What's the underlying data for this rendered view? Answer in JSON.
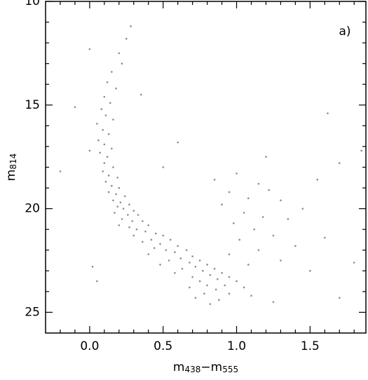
{
  "chart_data": {
    "type": "scatter",
    "annotation": "a)",
    "xlabel": [
      "m",
      "438",
      "−m",
      "555"
    ],
    "ylabel": [
      "m",
      "814"
    ],
    "color": "#8c8c8c",
    "xlim": [
      -0.3,
      1.88
    ],
    "ylim": [
      10,
      26
    ],
    "y_inverted": true,
    "xticks": [
      {
        "value": 0,
        "label": "0.0"
      },
      0.5,
      {
        "value": 1,
        "label": "1.0"
      },
      1.5
    ],
    "xminor": [
      -0.2,
      -0.1,
      0.1,
      0.2,
      0.3,
      0.4,
      0.6,
      0.7,
      0.8,
      0.9,
      1.1,
      1.2,
      1.3,
      1.4,
      1.6,
      1.7,
      1.8
    ],
    "yticks": [
      10,
      15,
      20,
      25
    ],
    "yminor": [
      11,
      12,
      13,
      14,
      16,
      17,
      18,
      19,
      21,
      22,
      23,
      24
    ],
    "x": [
      0.28,
      0.25,
      0.2,
      0.22,
      0.15,
      0.12,
      0.18,
      0.1,
      0.14,
      0.08,
      0.11,
      0.16,
      0.05,
      0.09,
      0.13,
      0.06,
      0.1,
      0.15,
      0.07,
      0.12,
      0.1,
      0.16,
      0.09,
      0.13,
      0.19,
      0.11,
      0.15,
      0.2,
      0.13,
      0.18,
      0.24,
      0.16,
      0.21,
      0.27,
      0.19,
      0.23,
      0.3,
      0.17,
      0.26,
      0.33,
      0.22,
      0.29,
      0.36,
      0.2,
      0.27,
      0.4,
      0.32,
      0.38,
      0.45,
      0.3,
      0.5,
      0.42,
      0.36,
      0.55,
      0.48,
      0.6,
      0.44,
      0.52,
      0.66,
      0.58,
      0.4,
      0.7,
      0.62,
      0.54,
      0.75,
      0.68,
      0.48,
      0.8,
      0.72,
      0.63,
      0.85,
      0.77,
      0.58,
      0.9,
      0.82,
      0.7,
      0.95,
      0.87,
      0.75,
      1.0,
      0.8,
      0.92,
      0.68,
      0.86,
      1.05,
      0.78,
      0.95,
      0.72,
      0.88,
      1.1,
      0.82,
      1.25,
      0.85,
      1.0,
      1.15,
      0.95,
      1.08,
      1.22,
      0.9,
      1.3,
      1.05,
      1.18,
      0.98,
      1.35,
      1.12,
      1.25,
      1.02,
      1.4,
      1.15,
      0.95,
      1.3,
      1.08,
      1.45,
      1.6,
      1.2,
      1.55,
      1.7,
      1.85,
      1.62,
      1.8,
      1.5,
      1.7,
      -0.1,
      0.0,
      -0.2,
      0.02,
      0.05,
      0.0,
      0.35,
      0.6,
      0.5
    ],
    "values": [
      11.2,
      11.8,
      12.5,
      13,
      13.4,
      13.9,
      14.2,
      14.6,
      14.9,
      15.2,
      15.5,
      15.7,
      15.9,
      16.2,
      16.4,
      16.7,
      16.9,
      17.1,
      17.3,
      17.5,
      17.8,
      18,
      18.2,
      18.4,
      18.5,
      18.7,
      18.9,
      19,
      19.2,
      19.3,
      19.4,
      19.6,
      19.7,
      19.8,
      19.9,
      20,
      20.1,
      20.2,
      20.3,
      20.3,
      20.5,
      20.6,
      20.6,
      20.8,
      20.9,
      20.8,
      21,
      21.1,
      21.2,
      21.3,
      21.3,
      21.5,
      21.6,
      21.5,
      21.7,
      21.8,
      21.9,
      22,
      22,
      22.1,
      22.2,
      22.3,
      22.4,
      22.5,
      22.5,
      22.6,
      22.7,
      22.7,
      22.8,
      22.9,
      22.9,
      23,
      23.1,
      23.1,
      23.2,
      23.3,
      23.3,
      23.4,
      23.5,
      23.5,
      23.7,
      23.7,
      23.8,
      23.9,
      23.8,
      24.1,
      24.1,
      24.3,
      24.4,
      24.2,
      24.6,
      24.5,
      18.6,
      18.3,
      18.8,
      19.2,
      19.5,
      19.1,
      19.8,
      19.6,
      20.2,
      20.4,
      20.7,
      20.5,
      21,
      21.3,
      21.5,
      21.8,
      22,
      22.2,
      22.5,
      22.7,
      20,
      21.4,
      17.5,
      18.6,
      17.8,
      17.2,
      15.4,
      22.6,
      23,
      24.3,
      15.1,
      17.2,
      18.2,
      22.8,
      23.5,
      12.3,
      14.5,
      16.8,
      18
    ]
  }
}
